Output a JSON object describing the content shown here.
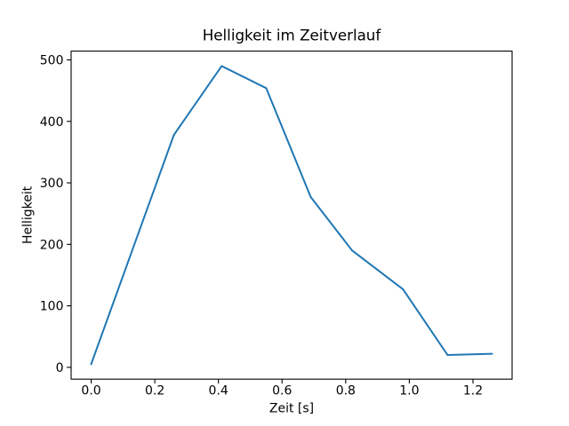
{
  "figure": {
    "background": "#ffffff"
  },
  "chart_data": {
    "type": "line",
    "title": "Helligkeit im Zeitverlauf",
    "xlabel": "Zeit [s]",
    "ylabel": "Helligkeit",
    "x": [
      0.0,
      0.26,
      0.41,
      0.55,
      0.69,
      0.82,
      0.98,
      1.12,
      1.26
    ],
    "y": [
      5,
      378,
      490,
      454,
      277,
      190,
      127,
      20,
      22
    ],
    "series_name": "Helligkeit",
    "xticks": [
      0.0,
      0.2,
      0.4,
      0.6,
      0.8,
      1.0,
      1.2
    ],
    "xtick_labels": [
      "0.0",
      "0.2",
      "0.4",
      "0.6",
      "0.8",
      "1.0",
      "1.2"
    ],
    "yticks": [
      0,
      100,
      200,
      300,
      400,
      500
    ],
    "ytick_labels": [
      "0",
      "100",
      "200",
      "300",
      "400",
      "500"
    ],
    "xlim": [
      -0.063,
      1.323
    ],
    "ylim": [
      -19.25,
      514.25
    ],
    "grid": false,
    "legend": null,
    "line_color": "#1f77b4",
    "axis_color": "#000000",
    "text_color": "#000000"
  }
}
